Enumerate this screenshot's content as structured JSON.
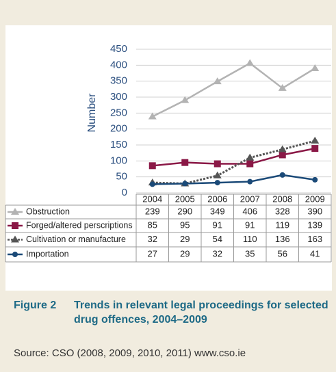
{
  "chart_data": {
    "type": "line",
    "figure_label": "Figure 2",
    "title": "Trends in relevant legal proceedings for selected drug offences, 2004–2009",
    "source": "Source: CSO (2008, 2009, 2010, 2011) www.cso.ie",
    "y_label": "Number",
    "categories": [
      "2004",
      "2005",
      "2006",
      "2007",
      "2008",
      "2009"
    ],
    "ylim": [
      0,
      450
    ],
    "yticks": [
      0,
      50,
      100,
      150,
      200,
      250,
      300,
      350,
      400,
      450
    ],
    "grid": true,
    "series": [
      {
        "name": "Obstruction",
        "color": "#b3b3b3",
        "marker": "triangle",
        "dashed": false,
        "values": [
          239,
          290,
          349,
          406,
          328,
          390
        ]
      },
      {
        "name": "Forged/altered perscriptions",
        "color": "#8a1846",
        "marker": "square",
        "dashed": false,
        "values": [
          85,
          95,
          91,
          91,
          119,
          139
        ]
      },
      {
        "name": "Cultivation or manufacture",
        "color": "#555555",
        "marker": "triangle",
        "dashed": true,
        "values": [
          32,
          29,
          54,
          110,
          136,
          163
        ]
      },
      {
        "name": "Importation",
        "color": "#1b4a78",
        "marker": "circle",
        "dashed": false,
        "values": [
          27,
          29,
          32,
          35,
          56,
          41
        ]
      }
    ]
  }
}
